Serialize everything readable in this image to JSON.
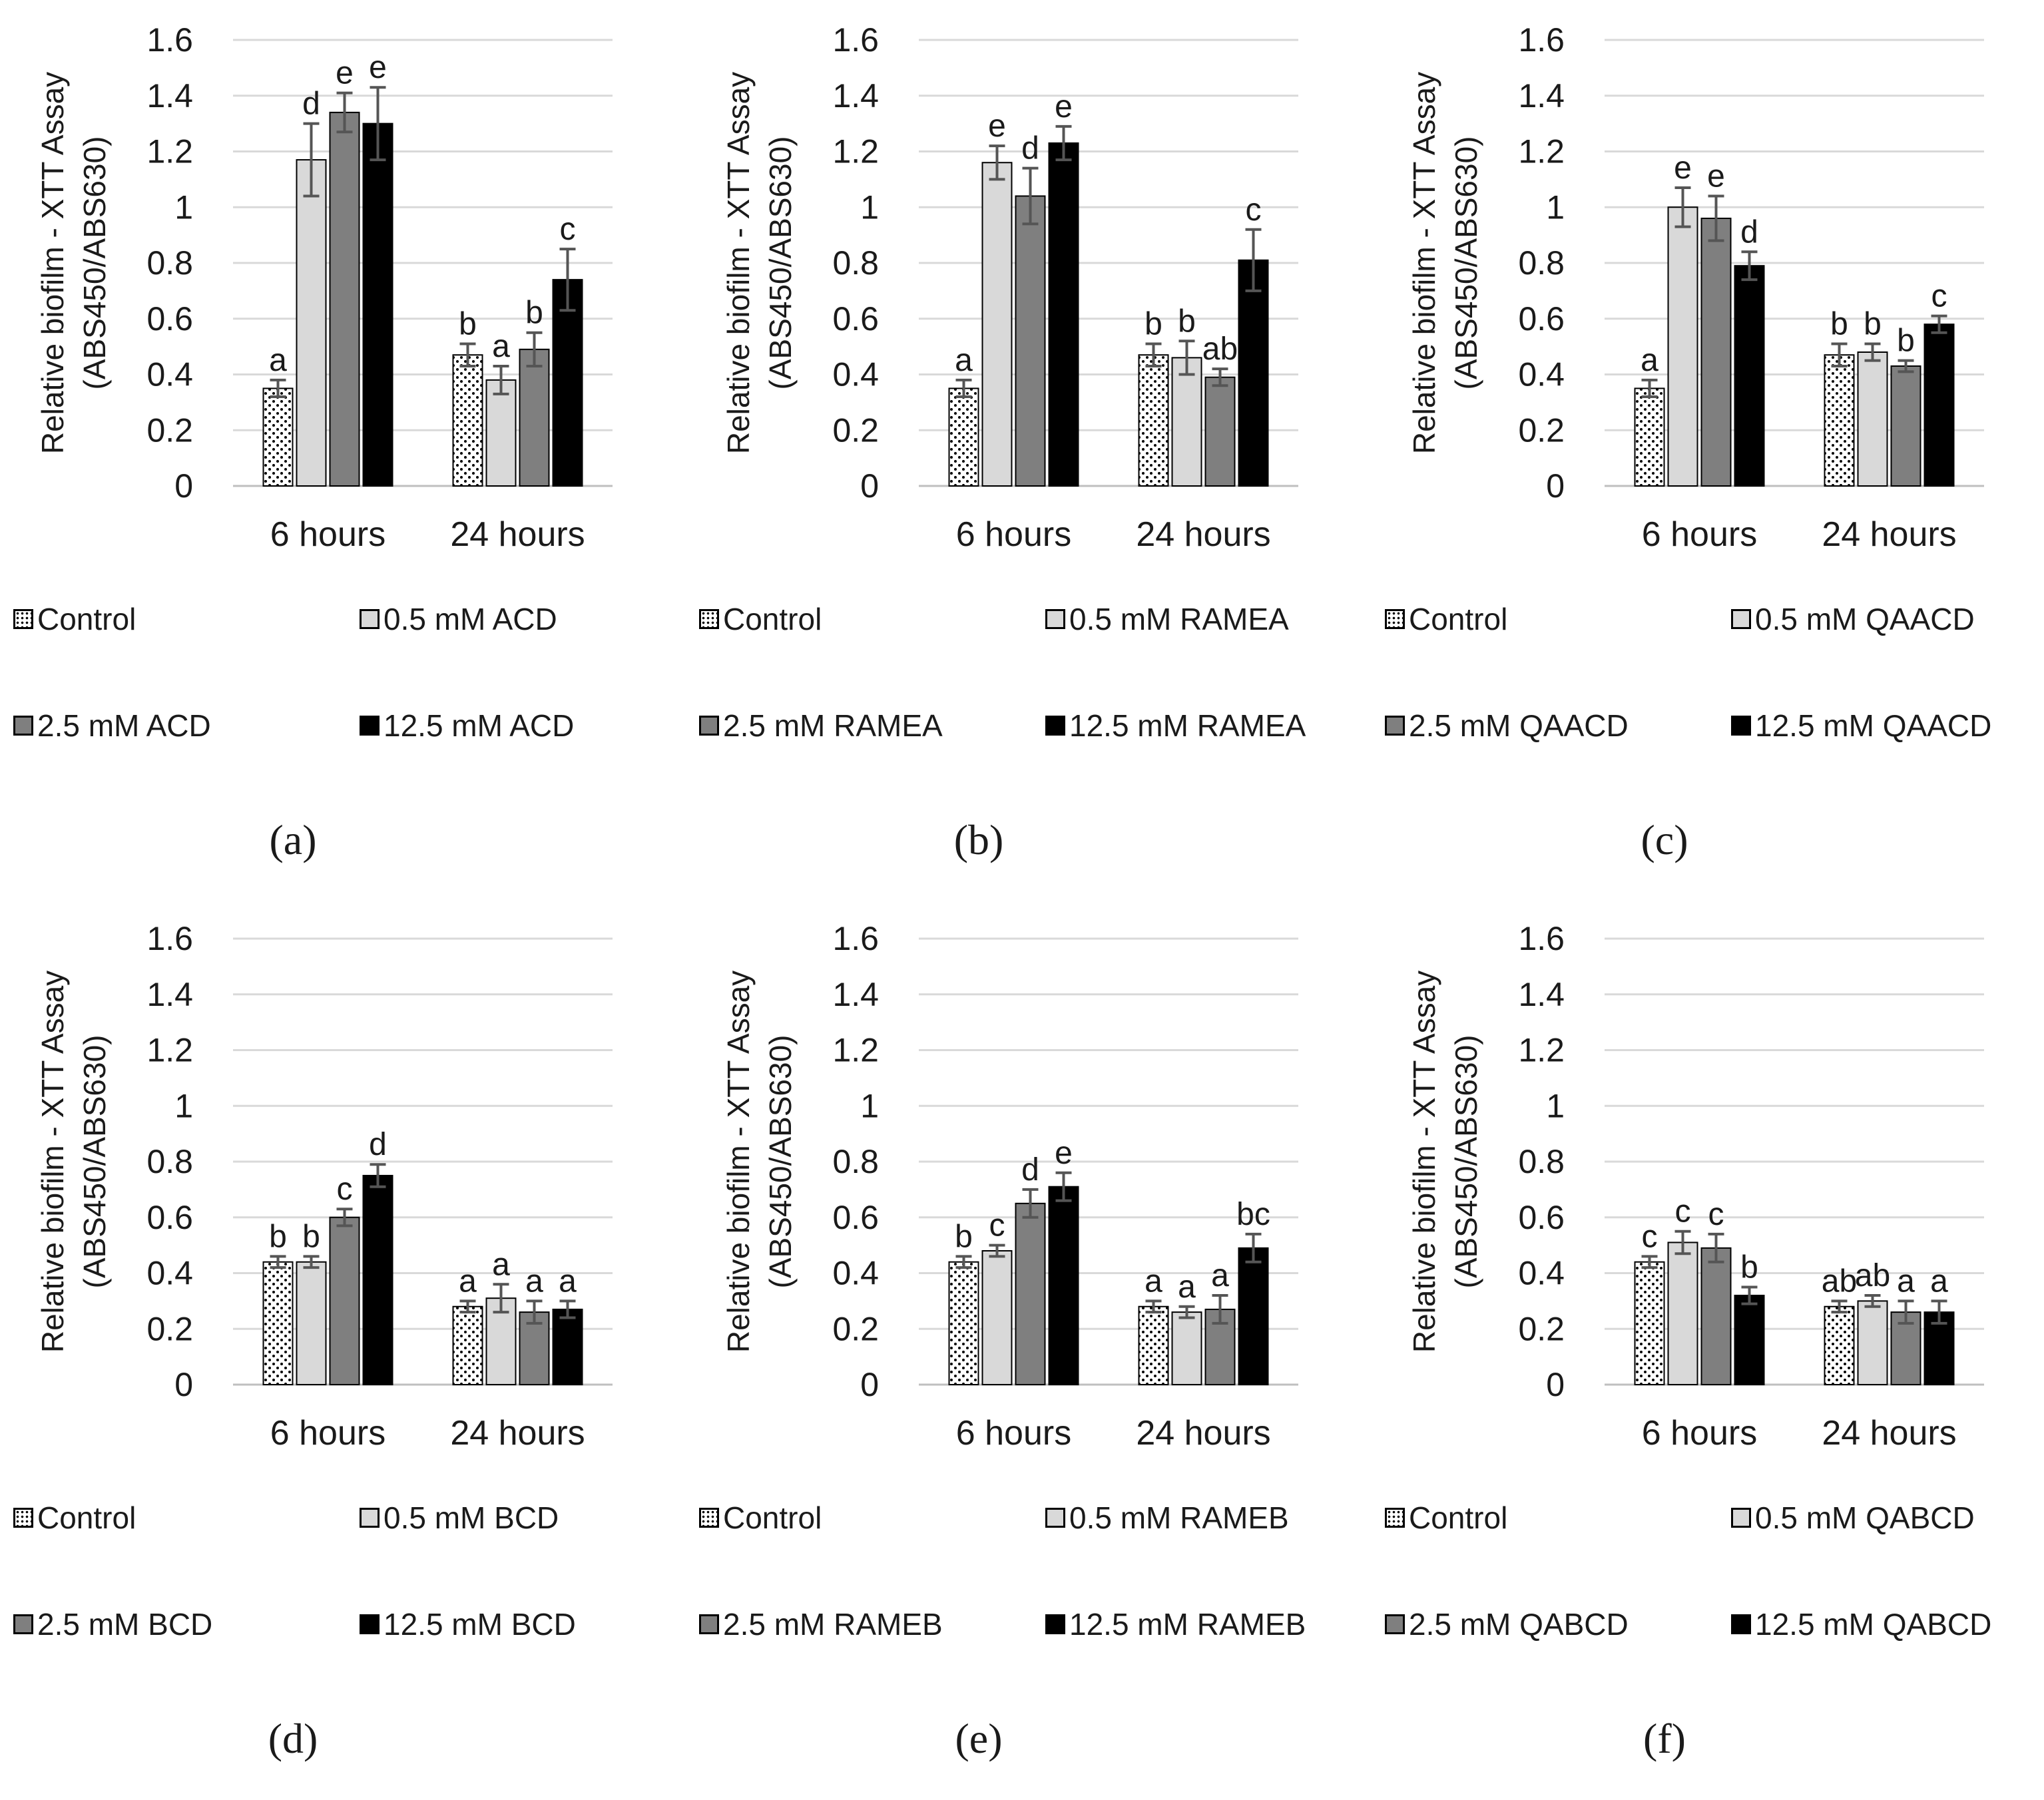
{
  "y_axis_label": "Relative biofilm - XTT Assay",
  "y_axis_unit": "(ABS450/ABS630)",
  "y_ticks": [
    "0",
    "0.2",
    "0.4",
    "0.6",
    "0.8",
    "1",
    "1.2",
    "1.4",
    "1.6"
  ],
  "colors": {
    "control": "#ffffff",
    "low": "#d9d9d9",
    "mid": "#7f7f7f",
    "high": "#000000",
    "grid": "#d9d9d9"
  },
  "chart_data": [
    {
      "type": "bar",
      "caption": "(a)",
      "categories": [
        "6 hours",
        "24 hours"
      ],
      "ylim": [
        0,
        1.6
      ],
      "series": [
        {
          "name": "Control",
          "values": [
            0.35,
            0.47
          ],
          "errors": [
            0.03,
            0.04
          ],
          "letters": [
            "a",
            "b"
          ]
        },
        {
          "name": "0.5 mM ACD",
          "values": [
            1.17,
            0.38
          ],
          "errors": [
            0.13,
            0.05
          ],
          "letters": [
            "d",
            "a"
          ]
        },
        {
          "name": "2.5 mM ACD",
          "values": [
            1.34,
            0.49
          ],
          "errors": [
            0.07,
            0.06
          ],
          "letters": [
            "e",
            "b"
          ]
        },
        {
          "name": "12.5 mM ACD",
          "values": [
            1.3,
            0.74
          ],
          "errors": [
            0.13,
            0.11
          ],
          "letters": [
            "e",
            "c"
          ]
        }
      ]
    },
    {
      "type": "bar",
      "caption": "(b)",
      "categories": [
        "6 hours",
        "24 hours"
      ],
      "ylim": [
        0,
        1.6
      ],
      "series": [
        {
          "name": "Control",
          "values": [
            0.35,
            0.47
          ],
          "errors": [
            0.03,
            0.04
          ],
          "letters": [
            "a",
            "b"
          ]
        },
        {
          "name": "0.5 mM RAMEA",
          "values": [
            1.16,
            0.46
          ],
          "errors": [
            0.06,
            0.06
          ],
          "letters": [
            "e",
            "b"
          ]
        },
        {
          "name": "2.5 mM RAMEA",
          "values": [
            1.04,
            0.39
          ],
          "errors": [
            0.1,
            0.03
          ],
          "letters": [
            "d",
            "ab"
          ]
        },
        {
          "name": "12.5 mM RAMEA",
          "values": [
            1.23,
            0.81
          ],
          "errors": [
            0.06,
            0.11
          ],
          "letters": [
            "e",
            "c"
          ]
        }
      ]
    },
    {
      "type": "bar",
      "caption": "(c)",
      "categories": [
        "6 hours",
        "24 hours"
      ],
      "ylim": [
        0,
        1.6
      ],
      "series": [
        {
          "name": "Control",
          "values": [
            0.35,
            0.47
          ],
          "errors": [
            0.03,
            0.04
          ],
          "letters": [
            "a",
            "b"
          ]
        },
        {
          "name": "0.5 mM QAACD",
          "values": [
            1.0,
            0.48
          ],
          "errors": [
            0.07,
            0.03
          ],
          "letters": [
            "e",
            "b"
          ]
        },
        {
          "name": "2.5 mM QAACD",
          "values": [
            0.96,
            0.43
          ],
          "errors": [
            0.08,
            0.02
          ],
          "letters": [
            "e",
            "b"
          ]
        },
        {
          "name": "12.5 mM QAACD",
          "values": [
            0.79,
            0.58
          ],
          "errors": [
            0.05,
            0.03
          ],
          "letters": [
            "d",
            "c"
          ]
        }
      ]
    },
    {
      "type": "bar",
      "caption": "(d)",
      "categories": [
        "6 hours",
        "24 hours"
      ],
      "ylim": [
        0,
        1.6
      ],
      "series": [
        {
          "name": "Control",
          "values": [
            0.44,
            0.28
          ],
          "errors": [
            0.02,
            0.02
          ],
          "letters": [
            "b",
            "a"
          ]
        },
        {
          "name": "0.5 mM BCD",
          "values": [
            0.44,
            0.31
          ],
          "errors": [
            0.02,
            0.05
          ],
          "letters": [
            "b",
            "a"
          ]
        },
        {
          "name": "2.5 mM BCD",
          "values": [
            0.6,
            0.26
          ],
          "errors": [
            0.03,
            0.04
          ],
          "letters": [
            "c",
            "a"
          ]
        },
        {
          "name": "12.5 mM BCD",
          "values": [
            0.75,
            0.27
          ],
          "errors": [
            0.04,
            0.03
          ],
          "letters": [
            "d",
            "a"
          ]
        }
      ]
    },
    {
      "type": "bar",
      "caption": "(e)",
      "categories": [
        "6 hours",
        "24 hours"
      ],
      "ylim": [
        0,
        1.6
      ],
      "series": [
        {
          "name": "Control",
          "values": [
            0.44,
            0.28
          ],
          "errors": [
            0.02,
            0.02
          ],
          "letters": [
            "b",
            "a"
          ]
        },
        {
          "name": "0.5 mM RAMEB",
          "values": [
            0.48,
            0.26
          ],
          "errors": [
            0.02,
            0.02
          ],
          "letters": [
            "c",
            "a"
          ]
        },
        {
          "name": "2.5 mM RAMEB",
          "values": [
            0.65,
            0.27
          ],
          "errors": [
            0.05,
            0.05
          ],
          "letters": [
            "d",
            "a"
          ]
        },
        {
          "name": "12.5 mM RAMEB",
          "values": [
            0.71,
            0.49
          ],
          "errors": [
            0.05,
            0.05
          ],
          "letters": [
            "e",
            "bc"
          ]
        }
      ]
    },
    {
      "type": "bar",
      "caption": "(f)",
      "categories": [
        "6 hours",
        "24 hours"
      ],
      "ylim": [
        0,
        1.6
      ],
      "series": [
        {
          "name": "Control",
          "values": [
            0.44,
            0.28
          ],
          "errors": [
            0.02,
            0.02
          ],
          "letters": [
            "c",
            "ab"
          ]
        },
        {
          "name": "0.5 mM QABCD",
          "values": [
            0.51,
            0.3
          ],
          "errors": [
            0.04,
            0.02
          ],
          "letters": [
            "c",
            "ab"
          ]
        },
        {
          "name": "2.5 mM QABCD",
          "values": [
            0.49,
            0.26
          ],
          "errors": [
            0.05,
            0.04
          ],
          "letters": [
            "c",
            "a"
          ]
        },
        {
          "name": "12.5 mM QABCD",
          "values": [
            0.32,
            0.26
          ],
          "errors": [
            0.03,
            0.04
          ],
          "letters": [
            "b",
            "a"
          ]
        }
      ]
    }
  ]
}
